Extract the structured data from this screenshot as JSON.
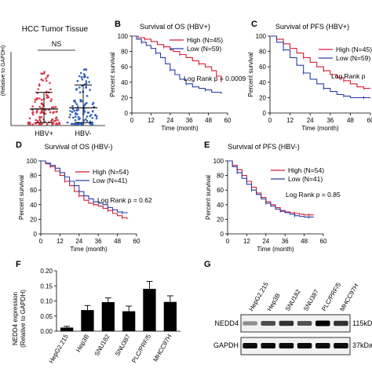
{
  "panels": {
    "A": {
      "title": "HCC Tumor Tissue",
      "ylabel": "(Relative to GAPDH)",
      "ns": "NS"
    },
    "B": {
      "letter": "B",
      "title": "Survival of OS (HBV+)"
    },
    "C": {
      "letter": "C",
      "title": "Survival of PFS (HBV+)"
    },
    "D": {
      "letter": "D",
      "title": "Survival of OS (HBV-)"
    },
    "E": {
      "letter": "E",
      "title": "Survival of PFS  (HBV-)"
    },
    "F": {
      "letter": "F",
      "ylabel_line1": "NEDD4 expression",
      "ylabel_line2": "(Relative to GAPDH)"
    },
    "G": {
      "letter": "G",
      "bands": [
        "NEDD4",
        "GAPDH"
      ],
      "sizes": [
        "115kDa",
        "37kDa"
      ]
    }
  },
  "colors": {
    "high": "#d81b35",
    "low": "#2a3ea8",
    "scatter_a": "#d83a4a",
    "scatter_b": "#2f5fb8",
    "bar": "#000000"
  },
  "chart_data": [
    {
      "id": "A",
      "type": "scatter",
      "title": "HCC Tumor Tissue",
      "categories": [
        "HBV+",
        "HBV-"
      ],
      "mean": [
        0.45,
        0.48
      ],
      "sd_upper": [
        0.9,
        1.1
      ],
      "sd_lower": [
        0.08,
        0.08
      ],
      "annotation": "NS"
    },
    {
      "id": "B",
      "type": "line",
      "title": "Survival of OS (HBV+)",
      "xlabel": "Time (month)",
      "ylabel": "Percent survival",
      "xlim": [
        0,
        60
      ],
      "ylim": [
        0,
        100
      ],
      "xticks": [
        0,
        12,
        24,
        36,
        48,
        60
      ],
      "yticks": [
        0,
        20,
        40,
        60,
        80,
        100
      ],
      "annotation": "Log Rank p = 0.0009",
      "series": [
        {
          "name": "High (N=45)",
          "color": "#d81b35",
          "x": [
            0,
            4,
            8,
            12,
            16,
            20,
            24,
            26,
            30,
            34,
            38,
            42,
            46,
            50,
            53,
            56
          ],
          "y": [
            100,
            98,
            96,
            93,
            89,
            86,
            82,
            80,
            76,
            72,
            68,
            64,
            60,
            55,
            48,
            40
          ]
        },
        {
          "name": "Low (N=59)",
          "color": "#2a3ea8",
          "x": [
            0,
            3,
            6,
            9,
            12,
            15,
            18,
            21,
            24,
            27,
            30,
            34,
            38,
            42,
            46,
            50,
            56
          ],
          "y": [
            100,
            96,
            92,
            88,
            84,
            78,
            72,
            64,
            56,
            50,
            44,
            38,
            34,
            32,
            30,
            27,
            25
          ]
        }
      ]
    },
    {
      "id": "C",
      "type": "line",
      "title": "Survival of PFS (HBV+)",
      "xlabel": "Time (month)",
      "ylabel": "Percent survival",
      "xlim": [
        0,
        60
      ],
      "ylim": [
        0,
        100
      ],
      "xticks": [
        0,
        12,
        24,
        36,
        48,
        60
      ],
      "yticks": [
        0,
        20,
        40,
        60,
        80,
        100
      ],
      "annotation": "Log Rank p",
      "series": [
        {
          "name": "High (N=45)",
          "color": "#d81b35",
          "x": [
            0,
            4,
            8,
            12,
            16,
            20,
            24,
            28,
            32,
            36,
            40,
            44,
            48,
            52,
            56,
            60
          ],
          "y": [
            100,
            96,
            90,
            84,
            78,
            72,
            66,
            60,
            55,
            50,
            46,
            42,
            38,
            34,
            32,
            32
          ]
        },
        {
          "name": "Low (N=59)",
          "color": "#2a3ea8",
          "x": [
            0,
            4,
            8,
            12,
            16,
            20,
            24,
            28,
            32,
            36,
            40,
            44,
            48,
            52,
            56,
            60
          ],
          "y": [
            100,
            92,
            82,
            72,
            62,
            52,
            44,
            38,
            32,
            28,
            24,
            22,
            20,
            20,
            20,
            20
          ]
        }
      ]
    },
    {
      "id": "D",
      "type": "line",
      "title": "Survival of OS (HBV-)",
      "xlabel": "Time (month)",
      "ylabel": "Percent survival",
      "xlim": [
        0,
        60
      ],
      "ylim": [
        0,
        100
      ],
      "xticks": [
        0,
        12,
        24,
        36,
        48,
        60
      ],
      "yticks": [
        0,
        20,
        40,
        60,
        80,
        100
      ],
      "annotation": "Log Rank p = 0.62",
      "series": [
        {
          "name": "High (N=54)",
          "color": "#d81b35",
          "x": [
            0,
            3,
            6,
            9,
            12,
            15,
            18,
            21,
            24,
            27,
            30,
            33,
            36,
            39,
            42,
            45,
            48,
            51,
            54
          ],
          "y": [
            100,
            96,
            92,
            86,
            80,
            72,
            66,
            58,
            52,
            46,
            42,
            40,
            38,
            35,
            32,
            28,
            25,
            22,
            20
          ]
        },
        {
          "name": "Low (N=41)",
          "color": "#2a3ea8",
          "x": [
            0,
            3,
            6,
            9,
            12,
            15,
            18,
            21,
            24,
            27,
            30,
            33,
            36,
            39,
            42,
            45,
            48,
            51,
            54
          ],
          "y": [
            100,
            97,
            94,
            90,
            84,
            78,
            72,
            66,
            58,
            52,
            48,
            44,
            42,
            40,
            36,
            33,
            30,
            29,
            28
          ]
        }
      ]
    },
    {
      "id": "E",
      "type": "line",
      "title": "Survival of PFS  (HBV-)",
      "xlabel": "Time (month)",
      "ylabel": "Percent survival",
      "xlim": [
        0,
        60
      ],
      "ylim": [
        0,
        100
      ],
      "xticks": [
        0,
        12,
        24,
        36,
        48,
        60
      ],
      "yticks": [
        0,
        20,
        40,
        60,
        80,
        100
      ],
      "annotation": "Log Rank p = 0.85",
      "series": [
        {
          "name": "High (N=54)",
          "color": "#d81b35",
          "x": [
            0,
            3,
            6,
            9,
            12,
            15,
            18,
            21,
            24,
            27,
            30,
            33,
            36,
            39,
            42,
            45,
            48,
            51,
            54
          ],
          "y": [
            100,
            94,
            88,
            80,
            72,
            64,
            56,
            50,
            44,
            40,
            36,
            32,
            30,
            29,
            28,
            27,
            26,
            26,
            26
          ]
        },
        {
          "name": "Low (N=41)",
          "color": "#2a3ea8",
          "x": [
            0,
            3,
            6,
            9,
            12,
            15,
            18,
            21,
            24,
            27,
            30,
            33,
            36,
            39,
            42,
            45,
            48,
            51,
            54
          ],
          "y": [
            100,
            92,
            84,
            76,
            68,
            60,
            54,
            48,
            42,
            38,
            34,
            31,
            29,
            27,
            25,
            24,
            23,
            23,
            23
          ]
        }
      ]
    },
    {
      "id": "F",
      "type": "bar",
      "ylabel": "NEDD4 expression (Relative to GAPDH)",
      "categories": [
        "HepG2.215",
        "Hep3B",
        "SNU182",
        "SNU387",
        "PLC/PRF/5",
        "MHCC97H"
      ],
      "values": [
        0.012,
        0.07,
        0.096,
        0.066,
        0.14,
        0.097
      ],
      "errors": [
        0.004,
        0.015,
        0.014,
        0.017,
        0.025,
        0.02
      ],
      "ylim": [
        0,
        0.2
      ],
      "yticks": [
        0.0,
        0.05,
        0.1,
        0.15,
        0.2
      ],
      "ytick_labels": [
        "0.00",
        "0.05",
        "0.10",
        "0.15",
        "0.20"
      ]
    }
  ]
}
